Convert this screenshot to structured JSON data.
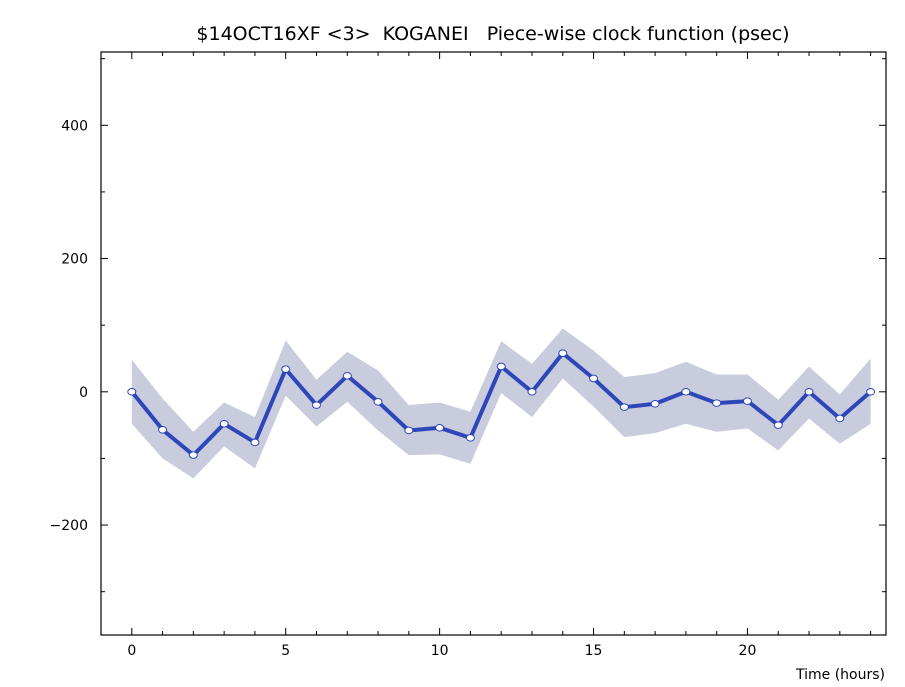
{
  "chart_data": {
    "type": "line",
    "title": "$14OCT16XF <3>  KOGANEI   Piece-wise clock function (psec)",
    "xlabel": "Time (hours)",
    "ylabel": "",
    "xlim": [
      -1,
      24.5
    ],
    "ylim": [
      -365,
      510
    ],
    "x_ticks": [
      0,
      5,
      10,
      15,
      20
    ],
    "x_tick_labels": [
      "0",
      "5",
      "10",
      "15",
      "20"
    ],
    "y_ticks": [
      400,
      200,
      0,
      -200
    ],
    "y_tick_labels": [
      "400",
      "200",
      "0",
      "−200"
    ],
    "grid": false,
    "series": [
      {
        "x": [
          0,
          1,
          2,
          3,
          4,
          5,
          6,
          7,
          8,
          9,
          10,
          11,
          12,
          13,
          14,
          15,
          16,
          17,
          18,
          19,
          20,
          21,
          22,
          23,
          24
        ],
        "values": [
          0,
          -57,
          -95,
          -48,
          -76,
          34,
          -20,
          24,
          -15,
          -58,
          -54,
          -69,
          38,
          0,
          58,
          20,
          -23,
          -18,
          0,
          -17,
          -14,
          -50,
          0,
          -40,
          0
        ],
        "upper": [
          48,
          -10,
          -60,
          -16,
          -38,
          77,
          18,
          60,
          32,
          -20,
          -16,
          -30,
          76,
          42,
          95,
          62,
          22,
          28,
          45,
          26,
          26,
          -12,
          38,
          -4,
          50
        ],
        "lower": [
          -48,
          -100,
          -130,
          -82,
          -115,
          -6,
          -52,
          -15,
          -58,
          -95,
          -94,
          -108,
          -2,
          -38,
          20,
          -22,
          -68,
          -62,
          -48,
          -60,
          -55,
          -88,
          -40,
          -78,
          -48
        ]
      }
    ],
    "colors": {
      "line": "#2d46b9",
      "band": "#c8ccdc",
      "marker_fill": "#ffffff",
      "marker_stroke": "#2d46b9",
      "axis": "#000000"
    }
  }
}
